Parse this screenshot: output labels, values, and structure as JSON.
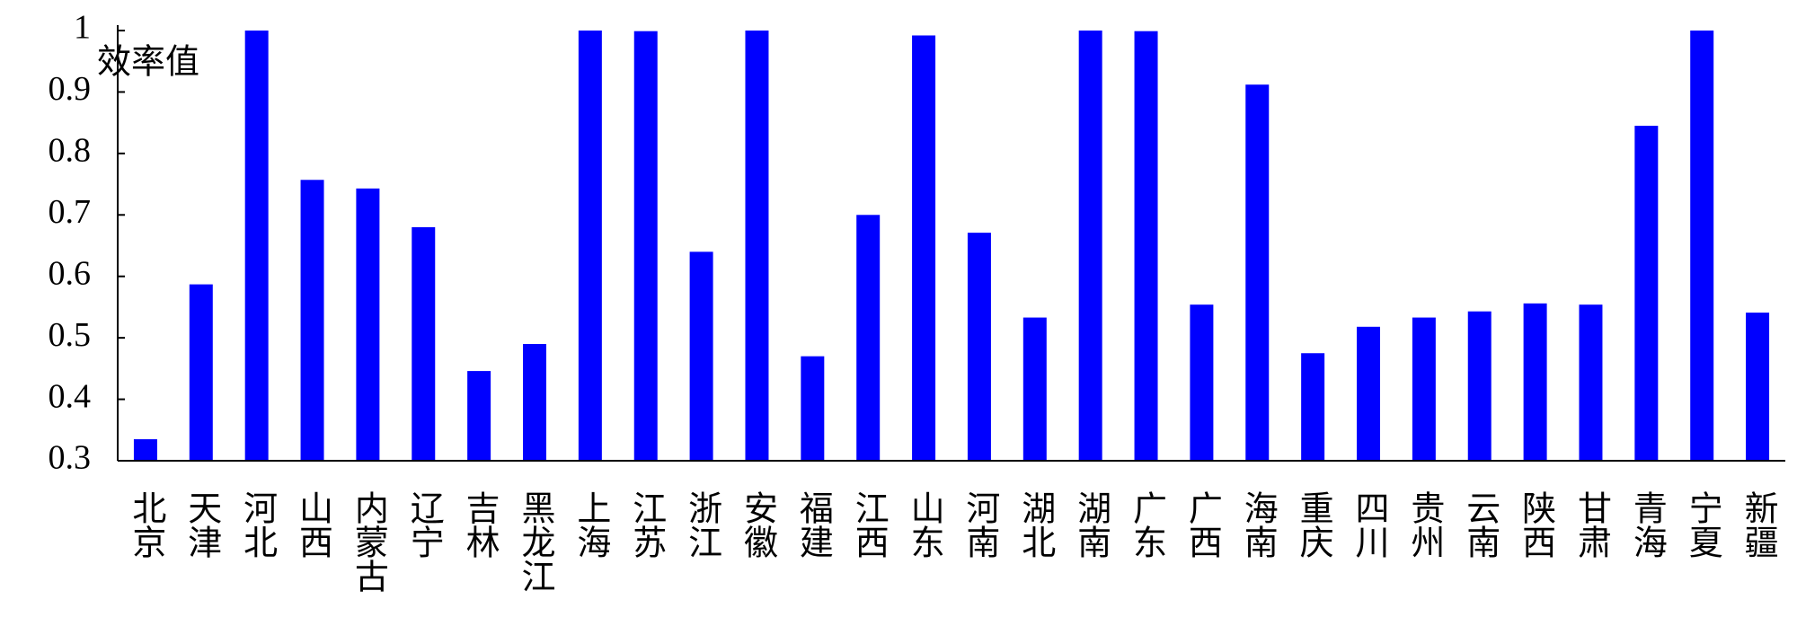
{
  "chart_data": {
    "type": "bar",
    "y_label": "效率值",
    "categories": [
      "北京",
      "天津",
      "河北",
      "山西",
      "内蒙古",
      "辽宁",
      "吉林",
      "黑龙江",
      "上海",
      "江苏",
      "浙江",
      "安徽",
      "福建",
      "江西",
      "山东",
      "河南",
      "湖北",
      "湖南",
      "广东",
      "广西",
      "海南",
      "重庆",
      "四川",
      "贵州",
      "云南",
      "陕西",
      "甘肃",
      "青海",
      "宁夏",
      "新疆"
    ],
    "values": [
      0.335,
      0.587,
      1,
      0.757,
      0.743,
      0.68,
      0.446,
      0.49,
      1,
      0.999,
      0.64,
      1,
      0.47,
      0.7,
      0.992,
      0.671,
      0.533,
      1,
      0.999,
      0.554,
      0.912,
      0.475,
      0.518,
      0.533,
      0.543,
      0.556,
      0.554,
      0.845,
      1,
      0.541
    ],
    "color": "#0000ff",
    "ylim": [
      0.3,
      1
    ],
    "yticks": [
      0.3,
      0.4,
      0.5,
      0.6,
      0.7,
      0.8,
      0.9,
      1
    ],
    "grid": false
  }
}
